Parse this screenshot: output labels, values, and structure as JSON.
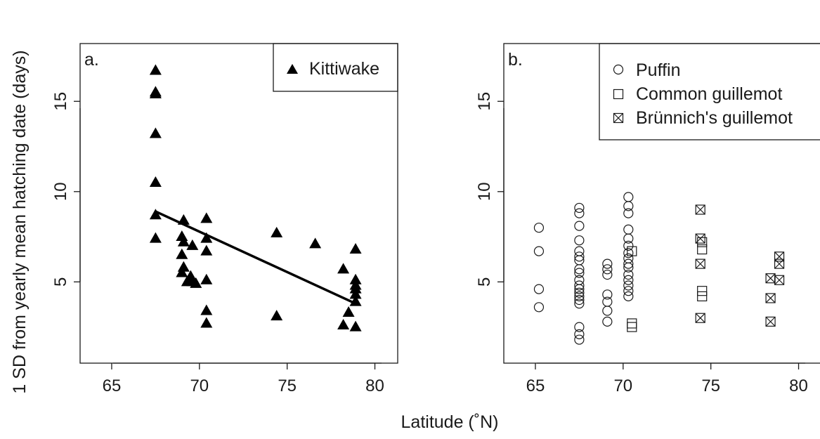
{
  "figure": {
    "ylabel": "1 SD from yearly mean hatching date (days)",
    "xlabel": "Latitude (˚N)"
  },
  "chart_data": [
    {
      "type": "scatter",
      "panel_label": "a.",
      "xlim": [
        63.2,
        81.3
      ],
      "ylim": [
        0.5,
        18.2
      ],
      "xticks": [
        65,
        70,
        75,
        80
      ],
      "yticks": [
        5,
        10,
        15
      ],
      "legend_position": "top-right",
      "series": [
        {
          "name": "Kittiwake",
          "marker": "filled-triangle",
          "points": [
            [
              67.5,
              16.7
            ],
            [
              67.5,
              15.5
            ],
            [
              67.5,
              15.4
            ],
            [
              67.5,
              13.2
            ],
            [
              67.5,
              10.5
            ],
            [
              67.5,
              8.7
            ],
            [
              67.5,
              7.4
            ],
            [
              69.1,
              8.4
            ],
            [
              69.0,
              7.5
            ],
            [
              69.1,
              7.2
            ],
            [
              69.0,
              6.5
            ],
            [
              69.1,
              5.8
            ],
            [
              69.0,
              5.5
            ],
            [
              69.3,
              5.0
            ],
            [
              69.6,
              7.0
            ],
            [
              69.5,
              5.3
            ],
            [
              69.6,
              5.0
            ],
            [
              69.8,
              4.9
            ],
            [
              70.4,
              8.5
            ],
            [
              70.4,
              7.4
            ],
            [
              70.4,
              6.7
            ],
            [
              70.4,
              5.1
            ],
            [
              70.4,
              3.4
            ],
            [
              70.4,
              2.7
            ],
            [
              74.4,
              7.7
            ],
            [
              74.4,
              3.1
            ],
            [
              76.6,
              7.1
            ],
            [
              78.2,
              5.7
            ],
            [
              78.2,
              2.6
            ],
            [
              78.5,
              3.3
            ],
            [
              78.9,
              6.8
            ],
            [
              78.9,
              5.1
            ],
            [
              78.9,
              4.8
            ],
            [
              78.9,
              4.6
            ],
            [
              78.9,
              4.3
            ],
            [
              78.9,
              3.9
            ],
            [
              78.9,
              2.5
            ]
          ]
        }
      ],
      "trendline": {
        "x": [
          67.5,
          78.9
        ],
        "y": [
          8.9,
          3.8
        ]
      }
    },
    {
      "type": "scatter",
      "panel_label": "b.",
      "xlim": [
        63.2,
        81.3
      ],
      "ylim": [
        0.5,
        18.2
      ],
      "xticks": [
        65,
        70,
        75,
        80
      ],
      "yticks": [
        5,
        10,
        15
      ],
      "legend_position": "top-right",
      "series": [
        {
          "name": "Puffin",
          "marker": "open-circle",
          "points": [
            [
              65.2,
              8.0
            ],
            [
              65.2,
              6.7
            ],
            [
              65.2,
              4.6
            ],
            [
              65.2,
              3.6
            ],
            [
              67.5,
              9.1
            ],
            [
              67.5,
              8.8
            ],
            [
              67.5,
              8.1
            ],
            [
              67.5,
              7.3
            ],
            [
              67.5,
              6.7
            ],
            [
              67.5,
              6.4
            ],
            [
              67.5,
              6.2
            ],
            [
              67.5,
              5.7
            ],
            [
              67.5,
              5.5
            ],
            [
              67.5,
              5.1
            ],
            [
              67.5,
              4.8
            ],
            [
              67.5,
              4.6
            ],
            [
              67.5,
              4.4
            ],
            [
              67.5,
              4.2
            ],
            [
              67.5,
              4.0
            ],
            [
              67.5,
              3.8
            ],
            [
              67.5,
              2.5
            ],
            [
              67.5,
              2.1
            ],
            [
              67.5,
              1.8
            ],
            [
              69.1,
              6.0
            ],
            [
              69.1,
              5.7
            ],
            [
              69.1,
              5.4
            ],
            [
              69.1,
              4.3
            ],
            [
              69.1,
              3.9
            ],
            [
              69.1,
              3.4
            ],
            [
              69.1,
              2.8
            ],
            [
              70.3,
              9.7
            ],
            [
              70.3,
              9.2
            ],
            [
              70.3,
              8.8
            ],
            [
              70.3,
              7.9
            ],
            [
              70.3,
              7.4
            ],
            [
              70.3,
              7.0
            ],
            [
              70.3,
              6.6
            ],
            [
              70.3,
              6.3
            ],
            [
              70.3,
              6.0
            ],
            [
              70.3,
              5.8
            ],
            [
              70.3,
              5.4
            ],
            [
              70.3,
              5.1
            ],
            [
              70.3,
              4.8
            ],
            [
              70.3,
              4.5
            ],
            [
              70.3,
              4.2
            ]
          ]
        },
        {
          "name": "Common guillemot",
          "marker": "open-square",
          "points": [
            [
              70.5,
              6.7
            ],
            [
              70.5,
              2.7
            ],
            [
              70.5,
              2.5
            ],
            [
              74.5,
              7.2
            ],
            [
              74.5,
              6.8
            ],
            [
              74.5,
              4.5
            ],
            [
              74.5,
              4.2
            ]
          ]
        },
        {
          "name": "Brünnich's guillemot",
          "marker": "crossed-square",
          "points": [
            [
              74.4,
              9.0
            ],
            [
              74.4,
              7.4
            ],
            [
              74.4,
              6.0
            ],
            [
              74.4,
              3.0
            ],
            [
              78.4,
              5.2
            ],
            [
              78.4,
              4.1
            ],
            [
              78.4,
              2.8
            ],
            [
              78.9,
              6.4
            ],
            [
              78.9,
              6.0
            ],
            [
              78.9,
              5.1
            ]
          ]
        }
      ]
    }
  ]
}
